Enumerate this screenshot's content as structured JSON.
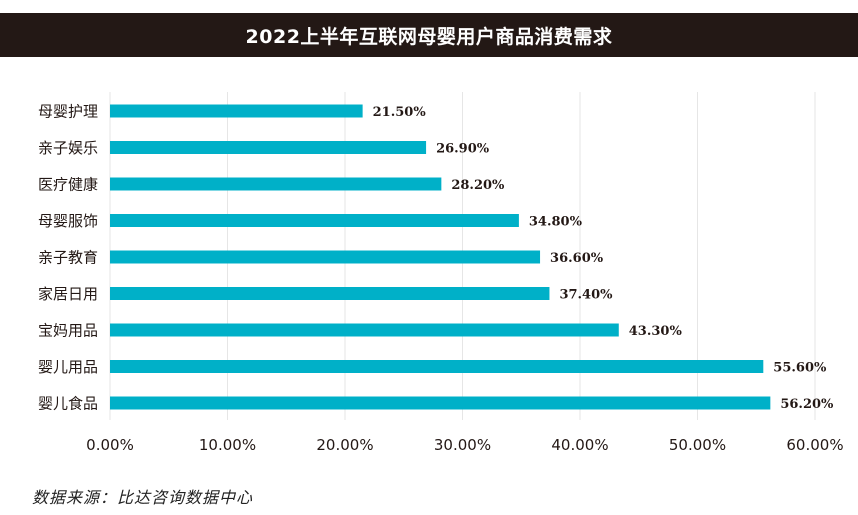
{
  "chart_data": {
    "type": "bar",
    "orientation": "horizontal",
    "title": "2022上半年互联网母婴用户商品消费需求",
    "categories": [
      "母婴护理",
      "亲子娱乐",
      "医疗健康",
      "母婴服饰",
      "亲子教育",
      "家居日用",
      "宝妈用品",
      "婴儿用品",
      "婴儿食品"
    ],
    "values": [
      21.5,
      26.9,
      28.2,
      34.8,
      36.6,
      37.4,
      43.3,
      55.6,
      56.2
    ],
    "data_labels": [
      "21.50%",
      "26.90%",
      "28.20%",
      "34.80%",
      "36.60%",
      "37.40%",
      "43.30%",
      "55.60%",
      "56.20%"
    ],
    "x_ticks": [
      "0.00%",
      "10.00%",
      "20.00%",
      "30.00%",
      "40.00%",
      "50.00%",
      "60.00%"
    ],
    "xlim": [
      0,
      60
    ],
    "grid": true,
    "bar_color": "#00b0c8",
    "xlabel": "",
    "ylabel": ""
  },
  "source": "数据来源：比达咨询数据中心",
  "colors": {
    "title_bg": "#231815",
    "title_text": "#ffffff",
    "bar": "#00b0c8",
    "grid": "#e6e6e6",
    "text": "#231815"
  }
}
